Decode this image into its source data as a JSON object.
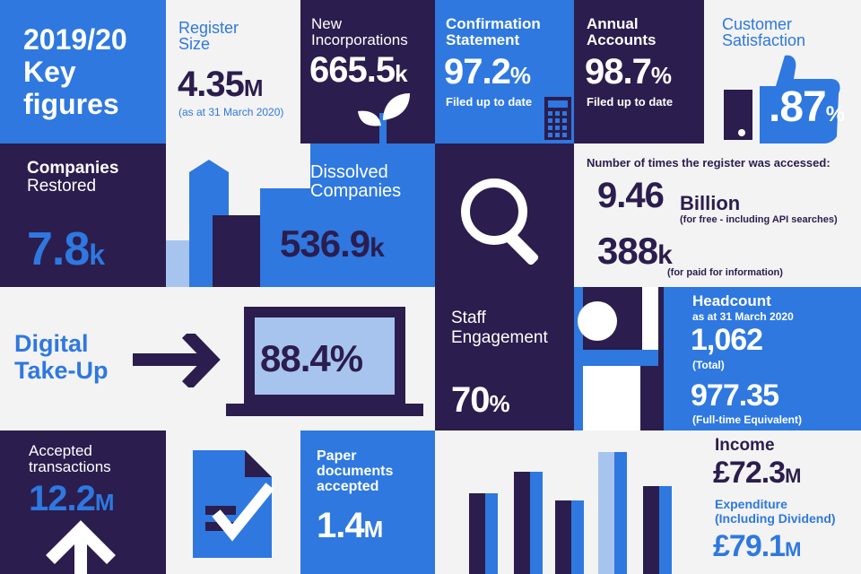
{
  "colors": {
    "navy": "#2b1d4d",
    "blue": "#2e78e0",
    "light_blue": "#a7c4ee",
    "bg": "#f3f3f3"
  },
  "key_figures": {
    "line1": "2019/20",
    "line2": "Key",
    "line3": "figures"
  },
  "register": {
    "title_1": "Register",
    "title_2": "Size",
    "value": "4.35",
    "unit": "M",
    "note": "(as at 31 March 2020)"
  },
  "incorporations": {
    "title_1": "New",
    "title_2": "Incorporations",
    "value": "665.5",
    "unit": "k",
    "icon": "plant-icon"
  },
  "confirmation": {
    "title_1": "Confirmation",
    "title_2": "Statement",
    "value": "97.2",
    "unit": "%",
    "note": "Filed up to date",
    "icon": "calculator-icon"
  },
  "accounts": {
    "title_1": "Annual",
    "title_2": "Accounts",
    "value": "98.7",
    "unit": "%",
    "note": "Filed up to date"
  },
  "satisfaction": {
    "title_1": "Customer",
    "title_2": "Satisfaction",
    "value": ".87",
    "unit": "%",
    "icon": "thumbs-up-icon"
  },
  "restored": {
    "title_1": "Companies",
    "title_2": "Restored",
    "value": "7.8",
    "unit": "k"
  },
  "dissolved": {
    "title_1": "Dissolved",
    "title_2": "Companies",
    "value": "536.9",
    "unit": "k"
  },
  "register_access": {
    "heading": "Number of times the register was accessed:",
    "free_value": "9.46",
    "free_unit": "Billion",
    "free_note": "(for free - including API searches)",
    "paid_value": "388",
    "paid_unit": "k",
    "paid_note": "(for paid for information)",
    "icon": "magnifier-icon"
  },
  "digital": {
    "title_1": "Digital",
    "title_2": "Take-Up",
    "value": "88.4%",
    "icon": "laptop-icon"
  },
  "staff": {
    "title_1": "Staff",
    "title_2": "Engagement",
    "value": "70",
    "unit": "%",
    "icon": "person-raising-hand-icon"
  },
  "headcount": {
    "title": "Headcount",
    "subtitle": "as at 31 March 2020",
    "total_value": "1,062",
    "total_note": "(Total)",
    "fte_value": "977.35",
    "fte_note": "(Full-time Equivalent)"
  },
  "transactions": {
    "title_1": "Accepted",
    "title_2": "transactions",
    "value": "12.2",
    "unit": "M",
    "icon": "up-arrow-icon"
  },
  "paper": {
    "title_1": "Paper",
    "title_2": "documents",
    "title_3": "accepted",
    "value": "1.4",
    "unit": "M",
    "icon": "document-check-icon"
  },
  "finance": {
    "income_title": "Income",
    "income_value": "£72.3",
    "income_unit": "M",
    "expenditure_title_1": "Expenditure",
    "expenditure_title_2": "(Including Dividend)",
    "expenditure_value": "£79.1",
    "expenditure_unit": "M"
  }
}
